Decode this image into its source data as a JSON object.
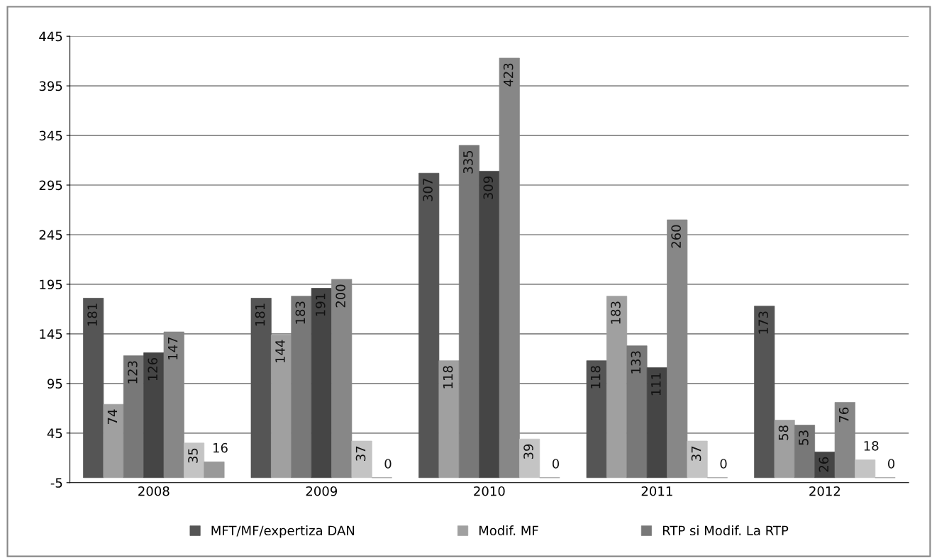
{
  "chart_data": {
    "type": "bar",
    "categories": [
      "2008",
      "2009",
      "2010",
      "2011",
      "2012"
    ],
    "series": [
      {
        "name": "MFT/MF/expertiza DAN",
        "color": "#555555",
        "values": [
          181,
          181,
          307,
          118,
          173
        ]
      },
      {
        "name": "Modif. MF",
        "color": "#a0a0a0",
        "values": [
          74,
          144,
          118,
          183,
          58
        ]
      },
      {
        "name": "RTP si Modif. La RTP",
        "color": "#787878",
        "values": [
          123,
          183,
          335,
          133,
          53
        ]
      },
      {
        "color": "#454545",
        "values": [
          126,
          191,
          309,
          111,
          26
        ]
      },
      {
        "color": "#878787",
        "values": [
          147,
          200,
          423,
          260,
          76
        ]
      },
      {
        "color": "#c4c4c4",
        "values": [
          35,
          37,
          39,
          37,
          18
        ]
      },
      {
        "color": "#999999",
        "values": [
          16,
          0,
          0,
          0,
          0
        ]
      }
    ],
    "ylim": [
      -5,
      445
    ],
    "yticks": [
      -5,
      45,
      95,
      145,
      195,
      245,
      295,
      345,
      395,
      445
    ],
    "grid": "y",
    "legend": "bottom",
    "data_labels": true
  }
}
